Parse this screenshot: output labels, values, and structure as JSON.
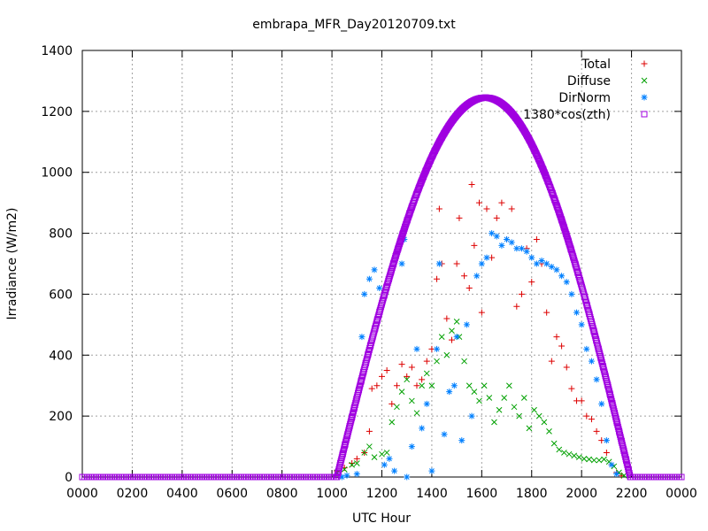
{
  "chart_data": {
    "type": "scatter",
    "title": "embrapa_MFR_Day20120709.txt",
    "xlabel": "UTC Hour",
    "ylabel": "Irradiance (W/m2)",
    "xlim": [
      0,
      24
    ],
    "ylim": [
      0,
      1400
    ],
    "x_ticks": [
      0,
      2,
      4,
      6,
      8,
      10,
      12,
      14,
      16,
      18,
      20,
      22,
      24
    ],
    "x_tick_labels": [
      "0000",
      "0200",
      "0400",
      "0600",
      "0800",
      "1000",
      "1200",
      "1400",
      "1600",
      "1800",
      "2000",
      "2200",
      "0000"
    ],
    "y_ticks": [
      0,
      200,
      400,
      600,
      800,
      1000,
      1200,
      1400
    ],
    "y_tick_labels": [
      "0",
      "200",
      "400",
      "600",
      "800",
      "1000",
      "1200",
      "1400"
    ],
    "grid": true,
    "legend_position": "top-right",
    "series": [
      {
        "name": "Total",
        "marker": "plus",
        "color": "#dd0000",
        "points": [
          [
            10.2,
            20
          ],
          [
            10.5,
            30
          ],
          [
            10.8,
            45
          ],
          [
            11.0,
            60
          ],
          [
            11.3,
            80
          ],
          [
            11.5,
            150
          ],
          [
            11.6,
            290
          ],
          [
            11.8,
            300
          ],
          [
            12.0,
            330
          ],
          [
            12.2,
            350
          ],
          [
            12.4,
            240
          ],
          [
            12.6,
            300
          ],
          [
            12.8,
            370
          ],
          [
            13.0,
            330
          ],
          [
            13.2,
            360
          ],
          [
            13.4,
            300
          ],
          [
            13.6,
            320
          ],
          [
            13.8,
            380
          ],
          [
            14.0,
            420
          ],
          [
            14.2,
            650
          ],
          [
            14.3,
            880
          ],
          [
            14.4,
            700
          ],
          [
            14.6,
            520
          ],
          [
            14.8,
            450
          ],
          [
            15.0,
            700
          ],
          [
            15.1,
            850
          ],
          [
            15.3,
            660
          ],
          [
            15.5,
            620
          ],
          [
            15.6,
            960
          ],
          [
            15.7,
            760
          ],
          [
            15.9,
            900
          ],
          [
            16.0,
            540
          ],
          [
            16.2,
            880
          ],
          [
            16.4,
            720
          ],
          [
            16.6,
            850
          ],
          [
            16.8,
            900
          ],
          [
            17.0,
            780
          ],
          [
            17.2,
            880
          ],
          [
            17.4,
            560
          ],
          [
            17.6,
            600
          ],
          [
            17.8,
            750
          ],
          [
            18.0,
            640
          ],
          [
            18.2,
            780
          ],
          [
            18.4,
            700
          ],
          [
            18.6,
            540
          ],
          [
            18.8,
            380
          ],
          [
            19.0,
            460
          ],
          [
            19.2,
            430
          ],
          [
            19.4,
            360
          ],
          [
            19.6,
            290
          ],
          [
            19.8,
            250
          ],
          [
            20.0,
            250
          ],
          [
            20.2,
            200
          ],
          [
            20.4,
            190
          ],
          [
            20.6,
            150
          ],
          [
            20.8,
            120
          ],
          [
            21.0,
            80
          ],
          [
            21.2,
            40
          ],
          [
            21.4,
            15
          ],
          [
            21.6,
            5
          ]
        ]
      },
      {
        "name": "Diffuse",
        "marker": "cross",
        "color": "#00a000",
        "points": [
          [
            10.2,
            15
          ],
          [
            10.5,
            25
          ],
          [
            10.8,
            40
          ],
          [
            11.0,
            45
          ],
          [
            11.3,
            80
          ],
          [
            11.5,
            100
          ],
          [
            11.7,
            65
          ],
          [
            12.0,
            75
          ],
          [
            12.2,
            80
          ],
          [
            12.4,
            180
          ],
          [
            12.6,
            230
          ],
          [
            12.8,
            280
          ],
          [
            13.0,
            320
          ],
          [
            13.2,
            250
          ],
          [
            13.4,
            210
          ],
          [
            13.6,
            300
          ],
          [
            13.8,
            340
          ],
          [
            14.0,
            300
          ],
          [
            14.2,
            380
          ],
          [
            14.4,
            460
          ],
          [
            14.6,
            400
          ],
          [
            14.8,
            480
          ],
          [
            15.0,
            510
          ],
          [
            15.1,
            460
          ],
          [
            15.3,
            380
          ],
          [
            15.5,
            300
          ],
          [
            15.7,
            280
          ],
          [
            15.9,
            250
          ],
          [
            16.1,
            300
          ],
          [
            16.3,
            260
          ],
          [
            16.5,
            180
          ],
          [
            16.7,
            220
          ],
          [
            16.9,
            260
          ],
          [
            17.1,
            300
          ],
          [
            17.3,
            230
          ],
          [
            17.5,
            200
          ],
          [
            17.7,
            260
          ],
          [
            17.9,
            160
          ],
          [
            18.1,
            220
          ],
          [
            18.3,
            200
          ],
          [
            18.5,
            180
          ],
          [
            18.7,
            150
          ],
          [
            18.9,
            110
          ],
          [
            19.1,
            90
          ],
          [
            19.3,
            80
          ],
          [
            19.5,
            75
          ],
          [
            19.7,
            70
          ],
          [
            19.9,
            65
          ],
          [
            20.1,
            60
          ],
          [
            20.3,
            58
          ],
          [
            20.5,
            55
          ],
          [
            20.7,
            55
          ],
          [
            20.9,
            58
          ],
          [
            21.1,
            50
          ],
          [
            21.3,
            35
          ],
          [
            21.5,
            15
          ],
          [
            21.7,
            5
          ]
        ]
      },
      {
        "name": "DirNorm",
        "marker": "star",
        "color": "#0080ff",
        "points": [
          [
            10.4,
            0
          ],
          [
            10.6,
            5
          ],
          [
            11.0,
            10
          ],
          [
            11.2,
            460
          ],
          [
            11.3,
            600
          ],
          [
            11.5,
            650
          ],
          [
            11.7,
            680
          ],
          [
            11.9,
            620
          ],
          [
            12.1,
            40
          ],
          [
            12.3,
            60
          ],
          [
            12.5,
            20
          ],
          [
            12.8,
            700
          ],
          [
            12.9,
            780
          ],
          [
            13.0,
            0
          ],
          [
            13.2,
            100
          ],
          [
            13.4,
            420
          ],
          [
            13.6,
            160
          ],
          [
            13.8,
            240
          ],
          [
            14.0,
            20
          ],
          [
            14.2,
            420
          ],
          [
            14.3,
            700
          ],
          [
            14.5,
            140
          ],
          [
            14.7,
            280
          ],
          [
            14.9,
            300
          ],
          [
            15.0,
            460
          ],
          [
            15.2,
            120
          ],
          [
            15.4,
            500
          ],
          [
            15.6,
            200
          ],
          [
            15.8,
            660
          ],
          [
            16.0,
            700
          ],
          [
            16.2,
            720
          ],
          [
            16.4,
            800
          ],
          [
            16.6,
            790
          ],
          [
            16.8,
            760
          ],
          [
            17.0,
            780
          ],
          [
            17.2,
            770
          ],
          [
            17.4,
            750
          ],
          [
            17.6,
            750
          ],
          [
            17.8,
            740
          ],
          [
            18.0,
            720
          ],
          [
            18.2,
            700
          ],
          [
            18.4,
            710
          ],
          [
            18.6,
            700
          ],
          [
            18.8,
            690
          ],
          [
            19.0,
            680
          ],
          [
            19.2,
            660
          ],
          [
            19.4,
            640
          ],
          [
            19.6,
            600
          ],
          [
            19.8,
            540
          ],
          [
            20.0,
            500
          ],
          [
            20.2,
            420
          ],
          [
            20.4,
            380
          ],
          [
            20.6,
            320
          ],
          [
            20.8,
            240
          ],
          [
            21.0,
            120
          ],
          [
            21.2,
            40
          ],
          [
            21.4,
            10
          ]
        ]
      },
      {
        "name": "1380*cos(zth)",
        "marker": "square",
        "color": "#a000e0",
        "peak": 1245,
        "peak_hour": 16.15,
        "sunrise_hour": 10.2,
        "sunset_hour": 21.95
      }
    ]
  }
}
